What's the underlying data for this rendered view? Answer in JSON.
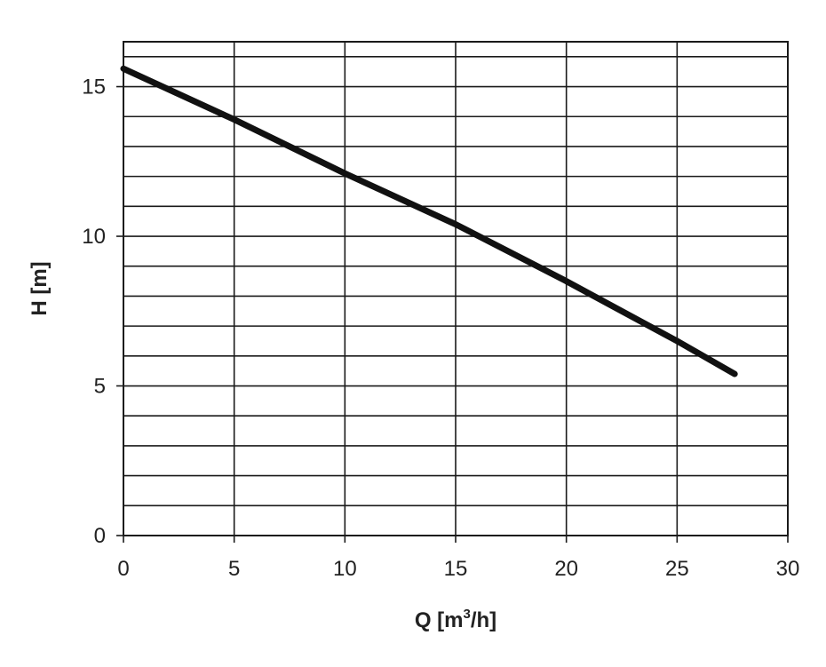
{
  "chart_data": {
    "type": "line",
    "title": "",
    "xlabel": "Q [m",
    "xlabel_sup": "3",
    "xlabel_suffix": "/h]",
    "ylabel": "H [m]",
    "xlim": [
      0,
      30
    ],
    "ylim": [
      0,
      16.5
    ],
    "x_ticks": [
      "0",
      "5",
      "10",
      "15",
      "20",
      "25",
      "30"
    ],
    "y_ticks": [
      "0",
      "5",
      "10",
      "15"
    ],
    "grid": true,
    "grid_x_step": 5,
    "grid_y_step": 1,
    "series": [
      {
        "x": [
          0,
          5,
          10,
          15,
          20,
          25,
          27.6
        ],
        "y": [
          15.6,
          13.9,
          12.1,
          10.4,
          8.5,
          6.5,
          5.4
        ],
        "color": "#111111"
      }
    ]
  }
}
